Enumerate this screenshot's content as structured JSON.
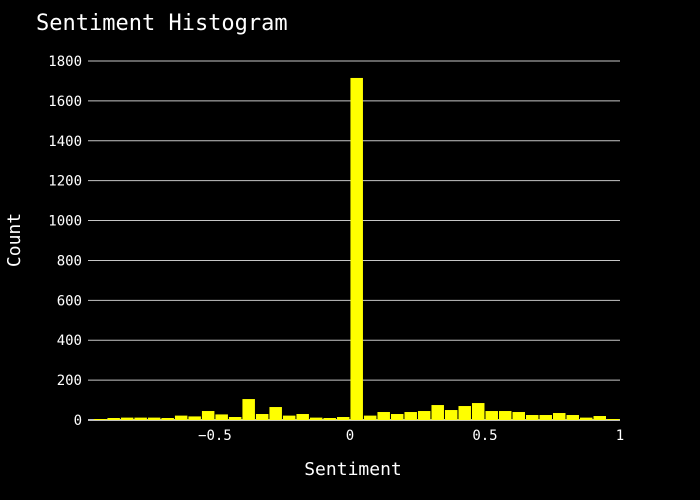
{
  "chart_data": {
    "type": "bar",
    "title": "Sentiment Histogram",
    "xlabel": "Sentiment",
    "ylabel": "Count",
    "xlim": [
      -0.97,
      1.0
    ],
    "ylim": [
      0,
      1800
    ],
    "xticks": [
      -0.5,
      0,
      0.5,
      1
    ],
    "xtick_labels": [
      "−0.5",
      "0",
      "0.5",
      "1"
    ],
    "yticks": [
      0,
      200,
      400,
      600,
      800,
      1000,
      1200,
      1400,
      1600,
      1800
    ],
    "ytick_labels": [
      "0",
      "200",
      "400",
      "600",
      "800",
      "1000",
      "1200",
      "1400",
      "1600",
      "1800"
    ],
    "grid": true,
    "bar_color": "#ffff00",
    "bin_width": 0.05,
    "bins": [
      {
        "x0": -0.95,
        "count": 5
      },
      {
        "x0": -0.9,
        "count": 10
      },
      {
        "x0": -0.85,
        "count": 12
      },
      {
        "x0": -0.8,
        "count": 12
      },
      {
        "x0": -0.75,
        "count": 12
      },
      {
        "x0": -0.7,
        "count": 10
      },
      {
        "x0": -0.65,
        "count": 22
      },
      {
        "x0": -0.6,
        "count": 18
      },
      {
        "x0": -0.55,
        "count": 45
      },
      {
        "x0": -0.5,
        "count": 28
      },
      {
        "x0": -0.45,
        "count": 15
      },
      {
        "x0": -0.4,
        "count": 105
      },
      {
        "x0": -0.35,
        "count": 30
      },
      {
        "x0": -0.3,
        "count": 65
      },
      {
        "x0": -0.25,
        "count": 22
      },
      {
        "x0": -0.2,
        "count": 30
      },
      {
        "x0": -0.15,
        "count": 12
      },
      {
        "x0": -0.1,
        "count": 10
      },
      {
        "x0": -0.05,
        "count": 15
      },
      {
        "x0": 0.0,
        "count": 1715
      },
      {
        "x0": 0.05,
        "count": 22
      },
      {
        "x0": 0.1,
        "count": 40
      },
      {
        "x0": 0.15,
        "count": 30
      },
      {
        "x0": 0.2,
        "count": 40
      },
      {
        "x0": 0.25,
        "count": 45
      },
      {
        "x0": 0.3,
        "count": 75
      },
      {
        "x0": 0.35,
        "count": 50
      },
      {
        "x0": 0.4,
        "count": 70
      },
      {
        "x0": 0.45,
        "count": 85
      },
      {
        "x0": 0.5,
        "count": 45
      },
      {
        "x0": 0.55,
        "count": 45
      },
      {
        "x0": 0.6,
        "count": 40
      },
      {
        "x0": 0.65,
        "count": 25
      },
      {
        "x0": 0.7,
        "count": 25
      },
      {
        "x0": 0.75,
        "count": 35
      },
      {
        "x0": 0.8,
        "count": 25
      },
      {
        "x0": 0.85,
        "count": 12
      },
      {
        "x0": 0.9,
        "count": 20
      },
      {
        "x0": 0.95,
        "count": 5
      }
    ]
  }
}
